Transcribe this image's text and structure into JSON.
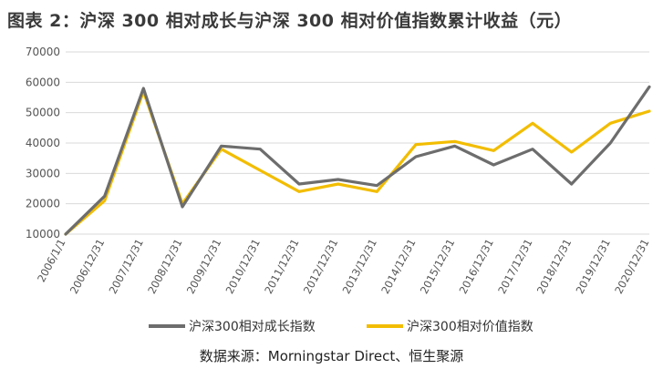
{
  "chart_data": {
    "type": "line",
    "title": "图表 2：沪深 300 相对成长与沪深 300 相对价值指数累计收益（元）",
    "categories": [
      "2006/1/1",
      "2006/12/31",
      "2007/12/31",
      "2008/12/31",
      "2009/12/31",
      "2010/12/31",
      "2011/12/31",
      "2012/12/31",
      "2013/12/31",
      "2014/12/31",
      "2015/12/31",
      "2016/12/31",
      "2017/12/31",
      "2018/12/31",
      "2019/12/31",
      "2020/12/31"
    ],
    "series": [
      {
        "name": "沪深300相对成长指数",
        "color": "#6d6d6d",
        "values": [
          10000,
          22500,
          58000,
          19000,
          39000,
          38000,
          26500,
          28000,
          26000,
          35500,
          39000,
          32800,
          38000,
          26500,
          40000,
          58500
        ]
      },
      {
        "name": "沪深300相对价值指数",
        "color": "#f2bd00",
        "values": [
          10000,
          21000,
          57000,
          20000,
          38000,
          31000,
          24000,
          26500,
          24000,
          39500,
          40500,
          37500,
          46500,
          37000,
          46500,
          50500
        ]
      }
    ],
    "yticks": [
      10000,
      20000,
      30000,
      40000,
      50000,
      60000,
      70000
    ],
    "ylim": [
      10000,
      70000
    ],
    "grid": true,
    "legend_position": "bottom"
  },
  "source": "数据来源：Morningstar Direct、恒生聚源"
}
